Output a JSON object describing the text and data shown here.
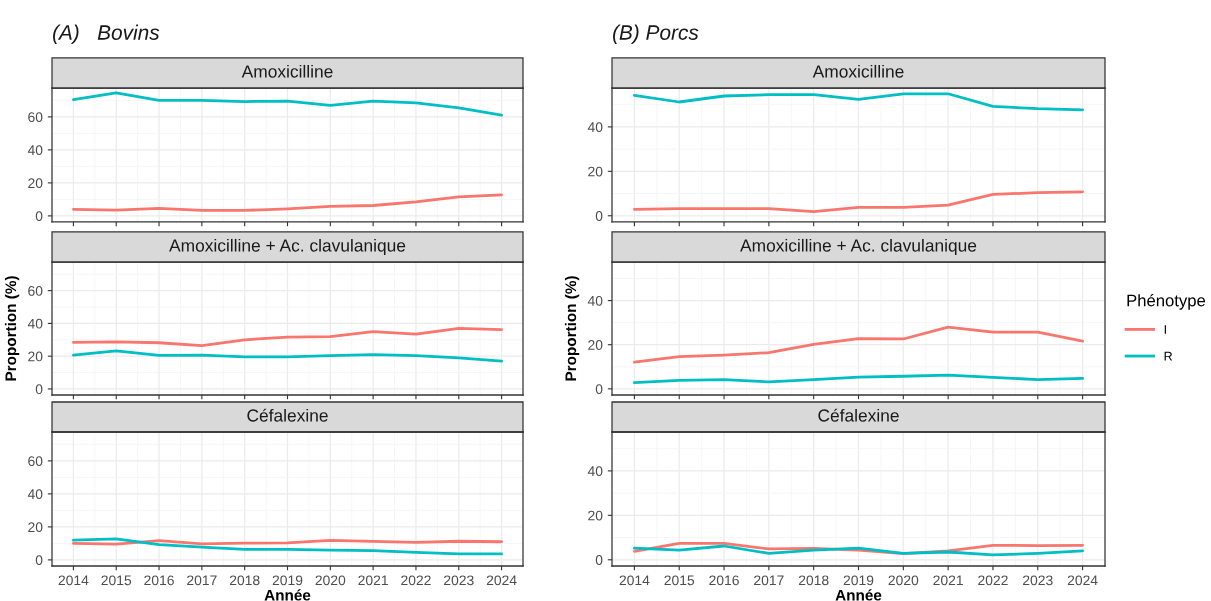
{
  "chart_data": [
    {
      "type": "line",
      "title": "Amoxicilline",
      "annotations": [
        "(A)   Bovins"
      ],
      "x": [
        2014,
        2015,
        2016,
        2017,
        2018,
        2019,
        2020,
        2021,
        2022,
        2023,
        2024
      ],
      "xlim": [
        2013.5,
        2024.5
      ],
      "ylim": [
        -3.7,
        77.5
      ],
      "yticks": [
        0,
        20,
        40,
        60
      ],
      "tick_labels": "y",
      "grid": true,
      "series": [
        {
          "color": "#f8766d",
          "values": [
            4,
            3.5,
            4.5,
            3.3,
            3.3,
            4.3,
            5.8,
            6.3,
            8.5,
            11.5,
            12.8
          ]
        },
        {
          "color": "#00bfc4",
          "values": [
            70.5,
            74.5,
            70,
            70,
            69.3,
            69.5,
            67,
            69.5,
            68.5,
            65.5,
            61
          ]
        }
      ]
    },
    {
      "type": "line",
      "title": "Amoxicilline + Ac. clavulanique",
      "ylabel": "Proportion (%)",
      "x": [
        2014,
        2015,
        2016,
        2017,
        2018,
        2019,
        2020,
        2021,
        2022,
        2023,
        2024
      ],
      "xlim": [
        2013.5,
        2024.5
      ],
      "ylim": [
        -3.7,
        77.5
      ],
      "yticks": [
        0,
        20,
        40,
        60
      ],
      "tick_labels": "y",
      "grid": true,
      "series": [
        {
          "color": "#f8766d",
          "values": [
            28.4,
            28.7,
            28.2,
            26.5,
            30,
            31.6,
            32,
            35,
            33.5,
            37,
            36.2
          ]
        },
        {
          "color": "#00bfc4",
          "values": [
            20.6,
            23.3,
            20.5,
            20.7,
            19.6,
            19.6,
            20.3,
            21,
            20.3,
            19,
            17
          ]
        }
      ]
    },
    {
      "type": "line",
      "title": "Céfalexine",
      "xlabel": "Année",
      "x": [
        2014,
        2015,
        2016,
        2017,
        2018,
        2019,
        2020,
        2021,
        2022,
        2023,
        2024
      ],
      "xlim": [
        2013.5,
        2024.5
      ],
      "xticks": [
        2014,
        2015,
        2016,
        2017,
        2018,
        2019,
        2020,
        2021,
        2022,
        2023,
        2024
      ],
      "ylim": [
        -3.7,
        77.5
      ],
      "yticks": [
        0,
        20,
        40,
        60
      ],
      "grid": true,
      "series": [
        {
          "color": "#f8766d",
          "values": [
            10,
            9.5,
            11.7,
            9.7,
            10.1,
            10.3,
            11.8,
            11.2,
            10.6,
            11.3,
            11
          ]
        },
        {
          "color": "#00bfc4",
          "values": [
            12,
            12.7,
            9.2,
            7.8,
            6.4,
            6.4,
            5.9,
            5.6,
            4.5,
            3.6,
            3.6
          ]
        }
      ]
    },
    {
      "type": "line",
      "title": "Amoxicilline",
      "annotations": [
        "(B) Porcs"
      ],
      "x": [
        2014,
        2015,
        2016,
        2017,
        2018,
        2019,
        2020,
        2021,
        2022,
        2023,
        2024
      ],
      "xlim": [
        2013.5,
        2024.5
      ],
      "ylim": [
        -2.8,
        57.5
      ],
      "yticks": [
        0,
        20,
        40
      ],
      "tick_labels": "y",
      "grid": true,
      "series": [
        {
          "color": "#f8766d",
          "values": [
            2.9,
            3.2,
            3.2,
            3.2,
            1.9,
            3.8,
            3.8,
            4.8,
            9.6,
            10.4,
            10.8
          ]
        },
        {
          "color": "#00bfc4",
          "values": [
            54.2,
            51.2,
            53.9,
            54.5,
            54.5,
            52.4,
            54.9,
            54.9,
            49.2,
            48.2,
            47.7
          ]
        }
      ]
    },
    {
      "type": "line",
      "title": "Amoxicilline + Ac. clavulanique",
      "ylabel": "Proportion (%)",
      "legend_title": "Phénotype",
      "x": [
        2014,
        2015,
        2016,
        2017,
        2018,
        2019,
        2020,
        2021,
        2022,
        2023,
        2024
      ],
      "xlim": [
        2013.5,
        2024.5
      ],
      "ylim": [
        -2.8,
        57.5
      ],
      "yticks": [
        0,
        20,
        40
      ],
      "tick_labels": "y",
      "grid": true,
      "legend": "right",
      "series": [
        {
          "name": "I",
          "color": "#f8766d",
          "values": [
            12.1,
            14.6,
            15.3,
            16.4,
            20.1,
            22.8,
            22.6,
            28,
            25.7,
            25.7,
            21.6
          ]
        },
        {
          "name": "R",
          "color": "#00bfc4",
          "values": [
            2.8,
            3.8,
            4.2,
            3.1,
            4.2,
            5.3,
            5.7,
            6.2,
            5.2,
            4.2,
            4.7
          ]
        }
      ]
    },
    {
      "type": "line",
      "title": "Céfalexine",
      "xlabel": "Année",
      "x": [
        2014,
        2015,
        2016,
        2017,
        2018,
        2019,
        2020,
        2021,
        2022,
        2023,
        2024
      ],
      "xlim": [
        2013.5,
        2024.5
      ],
      "xticks": [
        2014,
        2015,
        2016,
        2017,
        2018,
        2019,
        2020,
        2021,
        2022,
        2023,
        2024
      ],
      "ylim": [
        -2.8,
        57.5
      ],
      "yticks": [
        0,
        20,
        40
      ],
      "grid": true,
      "series": [
        {
          "color": "#f8766d",
          "values": [
            3.8,
            7.4,
            7.4,
            4.9,
            5.1,
            4.3,
            2.8,
            4,
            6.5,
            6.4,
            6.5
          ]
        },
        {
          "color": "#00bfc4",
          "values": [
            5.2,
            4.3,
            6.2,
            2.9,
            4.3,
            5.2,
            2.9,
            3.5,
            2.2,
            2.9,
            4
          ]
        }
      ]
    }
  ]
}
